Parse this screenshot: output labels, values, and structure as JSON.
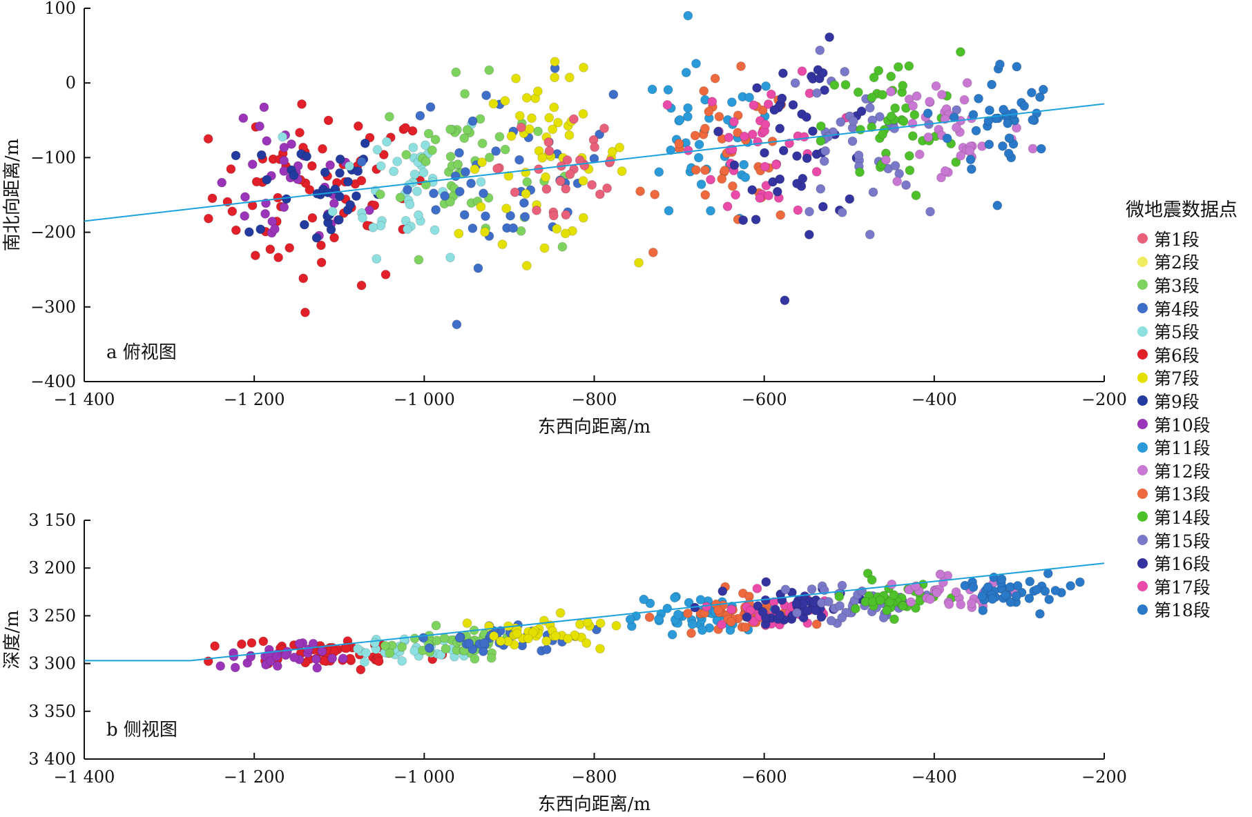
{
  "chart_data": [
    {
      "type": "scatter",
      "panel_label": "a 俯视图",
      "xlabel": "东西向距离/m",
      "ylabel": "南北向距离/m",
      "xlim": [
        -1400,
        -200
      ],
      "ylim": [
        -400,
        100
      ],
      "x_ticks": [
        "−1 400",
        "−1 200",
        "−1 000",
        "−800",
        "−600",
        "−400",
        "−200"
      ],
      "y_ticks": [
        "100",
        "0",
        "−100",
        "−200",
        "−300",
        "−400"
      ],
      "wellbore": {
        "x": [
          -1400,
          -200
        ],
        "y": [
          -185,
          -28
        ]
      },
      "clusters": [
        {
          "stage": "第6段",
          "cx": -1120,
          "cy": -150,
          "sx": 65,
          "sy": 60,
          "n": 70
        },
        {
          "stage": "第10段",
          "cx": -1160,
          "cy": -145,
          "sx": 45,
          "sy": 45,
          "n": 35
        },
        {
          "stage": "第9段",
          "cx": -1130,
          "cy": -140,
          "sx": 40,
          "sy": 40,
          "n": 35
        },
        {
          "stage": "第5段",
          "cx": -1010,
          "cy": -130,
          "sx": 45,
          "sy": 50,
          "n": 45
        },
        {
          "stage": "第3段",
          "cx": -960,
          "cy": -110,
          "sx": 45,
          "sy": 55,
          "n": 50
        },
        {
          "stage": "第4段",
          "cx": -900,
          "cy": -120,
          "sx": 60,
          "sy": 60,
          "n": 45
        },
        {
          "stage": "第7段",
          "cx": -860,
          "cy": -100,
          "sx": 50,
          "sy": 55,
          "n": 55
        },
        {
          "stage": "第1段",
          "cx": -830,
          "cy": -110,
          "sx": 40,
          "sy": 60,
          "n": 30
        },
        {
          "stage": "第11段",
          "cx": -670,
          "cy": -90,
          "sx": 45,
          "sy": 55,
          "n": 40
        },
        {
          "stage": "第13段",
          "cx": -640,
          "cy": -100,
          "sx": 40,
          "sy": 50,
          "n": 40
        },
        {
          "stage": "第17段",
          "cx": -600,
          "cy": -80,
          "sx": 40,
          "sy": 50,
          "n": 40
        },
        {
          "stage": "第16段",
          "cx": -550,
          "cy": -70,
          "sx": 45,
          "sy": 55,
          "n": 45
        },
        {
          "stage": "第15段",
          "cx": -500,
          "cy": -80,
          "sx": 40,
          "sy": 55,
          "n": 40
        },
        {
          "stage": "第14段",
          "cx": -450,
          "cy": -60,
          "sx": 40,
          "sy": 50,
          "n": 45
        },
        {
          "stage": "第12段",
          "cx": -380,
          "cy": -60,
          "sx": 45,
          "sy": 45,
          "n": 40
        },
        {
          "stage": "第18段",
          "cx": -320,
          "cy": -50,
          "sx": 30,
          "sy": 40,
          "n": 40
        }
      ]
    },
    {
      "type": "scatter",
      "panel_label": "b 侧视图",
      "xlabel": "东西向距离/m",
      "ylabel": "深度/m",
      "xlim": [
        -1400,
        -200
      ],
      "ylim": [
        3400,
        3150
      ],
      "x_ticks": [
        "−1 400",
        "−1 200",
        "−1 000",
        "−800",
        "−600",
        "−400",
        "−200"
      ],
      "y_ticks": [
        "3 150",
        "3 200",
        "3 250",
        "3 300",
        "3 350",
        "3 400"
      ],
      "wellbore": {
        "x": [
          -1400,
          -1275,
          -200
        ],
        "y": [
          3297,
          3297,
          3195
        ]
      },
      "clusters": [
        {
          "stage": "第6段",
          "cx": -1110,
          "cy": 3290,
          "sx": 55,
          "sy": 7,
          "n": 60
        },
        {
          "stage": "第10段",
          "cx": -1190,
          "cy": 3292,
          "sx": 40,
          "sy": 7,
          "n": 30
        },
        {
          "stage": "第5段",
          "cx": -1020,
          "cy": 3285,
          "sx": 30,
          "sy": 7,
          "n": 30
        },
        {
          "stage": "第3段",
          "cx": -970,
          "cy": 3278,
          "sx": 35,
          "sy": 8,
          "n": 40
        },
        {
          "stage": "第4段",
          "cx": -900,
          "cy": 3272,
          "sx": 45,
          "sy": 8,
          "n": 35
        },
        {
          "stage": "第7段",
          "cx": -860,
          "cy": 3268,
          "sx": 40,
          "sy": 8,
          "n": 40
        },
        {
          "stage": "第11段",
          "cx": -680,
          "cy": 3250,
          "sx": 40,
          "sy": 9,
          "n": 45
        },
        {
          "stage": "第13段",
          "cx": -630,
          "cy": 3248,
          "sx": 35,
          "sy": 9,
          "n": 40
        },
        {
          "stage": "第17段",
          "cx": -590,
          "cy": 3245,
          "sx": 35,
          "sy": 9,
          "n": 30
        },
        {
          "stage": "第16段",
          "cx": -550,
          "cy": 3240,
          "sx": 35,
          "sy": 9,
          "n": 40
        },
        {
          "stage": "第15段",
          "cx": -500,
          "cy": 3238,
          "sx": 35,
          "sy": 9,
          "n": 35
        },
        {
          "stage": "第14段",
          "cx": -440,
          "cy": 3232,
          "sx": 30,
          "sy": 9,
          "n": 35
        },
        {
          "stage": "第12段",
          "cx": -390,
          "cy": 3228,
          "sx": 30,
          "sy": 9,
          "n": 30
        },
        {
          "stage": "第18段",
          "cx": -310,
          "cy": 3222,
          "sx": 30,
          "sy": 10,
          "n": 40
        }
      ]
    }
  ],
  "legend": {
    "title": "微地震数据点",
    "items": [
      {
        "label": "第1段",
        "color": "#e8607a"
      },
      {
        "label": "第2段",
        "color": "#f0ec60"
      },
      {
        "label": "第3段",
        "color": "#7ed35f"
      },
      {
        "label": "第4段",
        "color": "#3f6ec8"
      },
      {
        "label": "第5段",
        "color": "#8ee0e0"
      },
      {
        "label": "第6段",
        "color": "#e2202a"
      },
      {
        "label": "第7段",
        "color": "#e4e000"
      },
      {
        "label": "第9段",
        "color": "#233a9e"
      },
      {
        "label": "第10段",
        "color": "#9a34b8"
      },
      {
        "label": "第11段",
        "color": "#2a9ad8"
      },
      {
        "label": "第12段",
        "color": "#c878d2"
      },
      {
        "label": "第13段",
        "color": "#ee6a3e"
      },
      {
        "label": "第14段",
        "color": "#4ec02a"
      },
      {
        "label": "第15段",
        "color": "#7a78c8"
      },
      {
        "label": "第16段",
        "color": "#3434a0"
      },
      {
        "label": "第17段",
        "color": "#ea4aa8"
      },
      {
        "label": "第18段",
        "color": "#2a78c8"
      }
    ]
  },
  "wellbore_color": "#1aa0dc"
}
